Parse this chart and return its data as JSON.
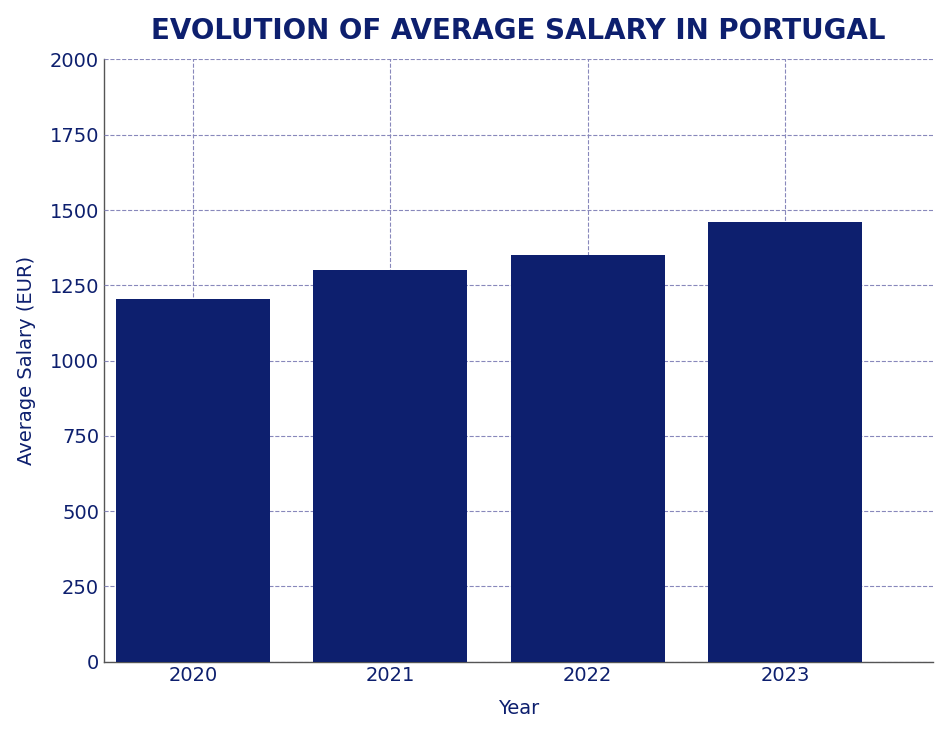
{
  "title": "EVOLUTION OF AVERAGE SALARY IN PORTUGAL",
  "xlabel": "Year",
  "ylabel": "Average Salary (EUR)",
  "years": [
    2020,
    2021,
    2022,
    2023
  ],
  "values": [
    1205,
    1300,
    1350,
    1460
  ],
  "bar_color": "#0d1f6e",
  "background_color": "#ffffff",
  "grid_color": "#8888bb",
  "title_color": "#0d1f6e",
  "axis_label_color": "#0d1f6e",
  "tick_color": "#0d1f6e",
  "ylim": [
    0,
    2000
  ],
  "yticks": [
    0,
    250,
    500,
    750,
    1000,
    1250,
    1500,
    1750,
    2000
  ],
  "bar_width": 0.78,
  "title_fontsize": 20,
  "label_fontsize": 14,
  "tick_fontsize": 14
}
